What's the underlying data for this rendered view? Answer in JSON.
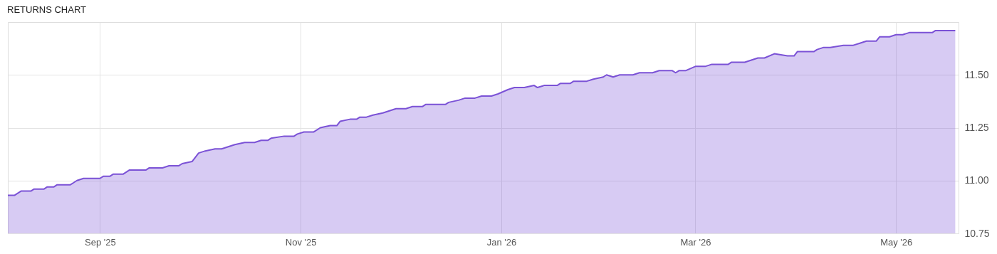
{
  "chart_data": {
    "type": "area",
    "title": "RETURNS CHART",
    "x": [
      "2025-08-04",
      "2025-08-06",
      "2025-08-08",
      "2025-08-11",
      "2025-08-12",
      "2025-08-15",
      "2025-08-16",
      "2025-08-18",
      "2025-08-19",
      "2025-08-23",
      "2025-08-24",
      "2025-08-25",
      "2025-08-27",
      "2025-09-01",
      "2025-09-02",
      "2025-09-04",
      "2025-09-05",
      "2025-09-08",
      "2025-09-09",
      "2025-09-10",
      "2025-09-15",
      "2025-09-16",
      "2025-09-20",
      "2025-09-22",
      "2025-09-25",
      "2025-09-26",
      "2025-09-29",
      "2025-10-01",
      "2025-10-03",
      "2025-10-06",
      "2025-10-08",
      "2025-10-10",
      "2025-10-12",
      "2025-10-15",
      "2025-10-18",
      "2025-10-20",
      "2025-10-22",
      "2025-10-23",
      "2025-10-27",
      "2025-10-30",
      "2025-10-31",
      "2025-11-02",
      "2025-11-05",
      "2025-11-07",
      "2025-11-10",
      "2025-11-12",
      "2025-11-13",
      "2025-11-16",
      "2025-11-18",
      "2025-11-19",
      "2025-11-21",
      "2025-11-23",
      "2025-11-26",
      "2025-11-28",
      "2025-11-30",
      "2025-12-03",
      "2025-12-05",
      "2025-12-08",
      "2025-12-09",
      "2025-12-15",
      "2025-12-16",
      "2025-12-19",
      "2025-12-21",
      "2025-12-24",
      "2025-12-26",
      "2025-12-29",
      "2025-12-31",
      "2026-01-03",
      "2026-01-05",
      "2026-01-08",
      "2026-01-11",
      "2026-01-12",
      "2026-01-14",
      "2026-01-18",
      "2026-01-19",
      "2026-01-22",
      "2026-01-23",
      "2026-01-27",
      "2026-01-29",
      "2026-02-01",
      "2026-02-02",
      "2026-02-04",
      "2026-02-06",
      "2026-02-10",
      "2026-02-12",
      "2026-02-16",
      "2026-02-18",
      "2026-02-22",
      "2026-02-23",
      "2026-02-24",
      "2026-02-26",
      "2026-03-01",
      "2026-03-04",
      "2026-03-06",
      "2026-03-11",
      "2026-03-12",
      "2026-03-16",
      "2026-03-18",
      "2026-03-20",
      "2026-03-22",
      "2026-03-25",
      "2026-03-29",
      "2026-03-31",
      "2026-04-01",
      "2026-04-06",
      "2026-04-07",
      "2026-04-09",
      "2026-04-11",
      "2026-04-15",
      "2026-04-18",
      "2026-04-20",
      "2026-04-22",
      "2026-04-25",
      "2026-04-26",
      "2026-04-29",
      "2026-05-01",
      "2026-05-03",
      "2026-05-05",
      "2026-05-12",
      "2026-05-13",
      "2026-05-19"
    ],
    "series": [
      {
        "color": "#7b52d6",
        "values": [
          10.93,
          10.93,
          10.95,
          10.95,
          10.96,
          10.96,
          10.97,
          10.97,
          10.98,
          10.98,
          10.99,
          11.0,
          11.01,
          11.01,
          11.02,
          11.02,
          11.03,
          11.03,
          11.04,
          11.05,
          11.05,
          11.06,
          11.06,
          11.07,
          11.07,
          11.08,
          11.09,
          11.13,
          11.14,
          11.15,
          11.15,
          11.16,
          11.17,
          11.18,
          11.18,
          11.19,
          11.19,
          11.2,
          11.21,
          11.21,
          11.22,
          11.23,
          11.23,
          11.25,
          11.26,
          11.26,
          11.28,
          11.29,
          11.29,
          11.3,
          11.3,
          11.31,
          11.32,
          11.33,
          11.34,
          11.34,
          11.35,
          11.35,
          11.36,
          11.36,
          11.37,
          11.38,
          11.39,
          11.39,
          11.4,
          11.4,
          11.41,
          11.43,
          11.44,
          11.44,
          11.45,
          11.44,
          11.45,
          11.45,
          11.46,
          11.46,
          11.47,
          11.47,
          11.48,
          11.49,
          11.5,
          11.49,
          11.5,
          11.5,
          11.51,
          11.51,
          11.52,
          11.52,
          11.51,
          11.52,
          11.52,
          11.54,
          11.54,
          11.55,
          11.55,
          11.56,
          11.56,
          11.57,
          11.58,
          11.58,
          11.6,
          11.59,
          11.59,
          11.61,
          11.61,
          11.62,
          11.63,
          11.63,
          11.64,
          11.64,
          11.65,
          11.66,
          11.66,
          11.68,
          11.68,
          11.69,
          11.69,
          11.7,
          11.7,
          11.71,
          11.71
        ]
      }
    ],
    "xlim": [
      "2025-08-04",
      "2026-05-20"
    ],
    "xticks": [
      {
        "value": "2025-09-01",
        "label": "Sep '25"
      },
      {
        "value": "2025-11-01",
        "label": "Nov '25"
      },
      {
        "value": "2026-01-01",
        "label": "Jan '26"
      },
      {
        "value": "2026-03-01",
        "label": "Mar '26"
      },
      {
        "value": "2026-05-01",
        "label": "May '26"
      }
    ],
    "ylim": [
      10.75,
      11.75
    ],
    "yticks": [
      {
        "value": 10.75,
        "label": "10.75"
      },
      {
        "value": 11.0,
        "label": "11.00"
      },
      {
        "value": 11.25,
        "label": "11.25"
      },
      {
        "value": 11.5,
        "label": "11.50"
      }
    ],
    "grid": true
  }
}
